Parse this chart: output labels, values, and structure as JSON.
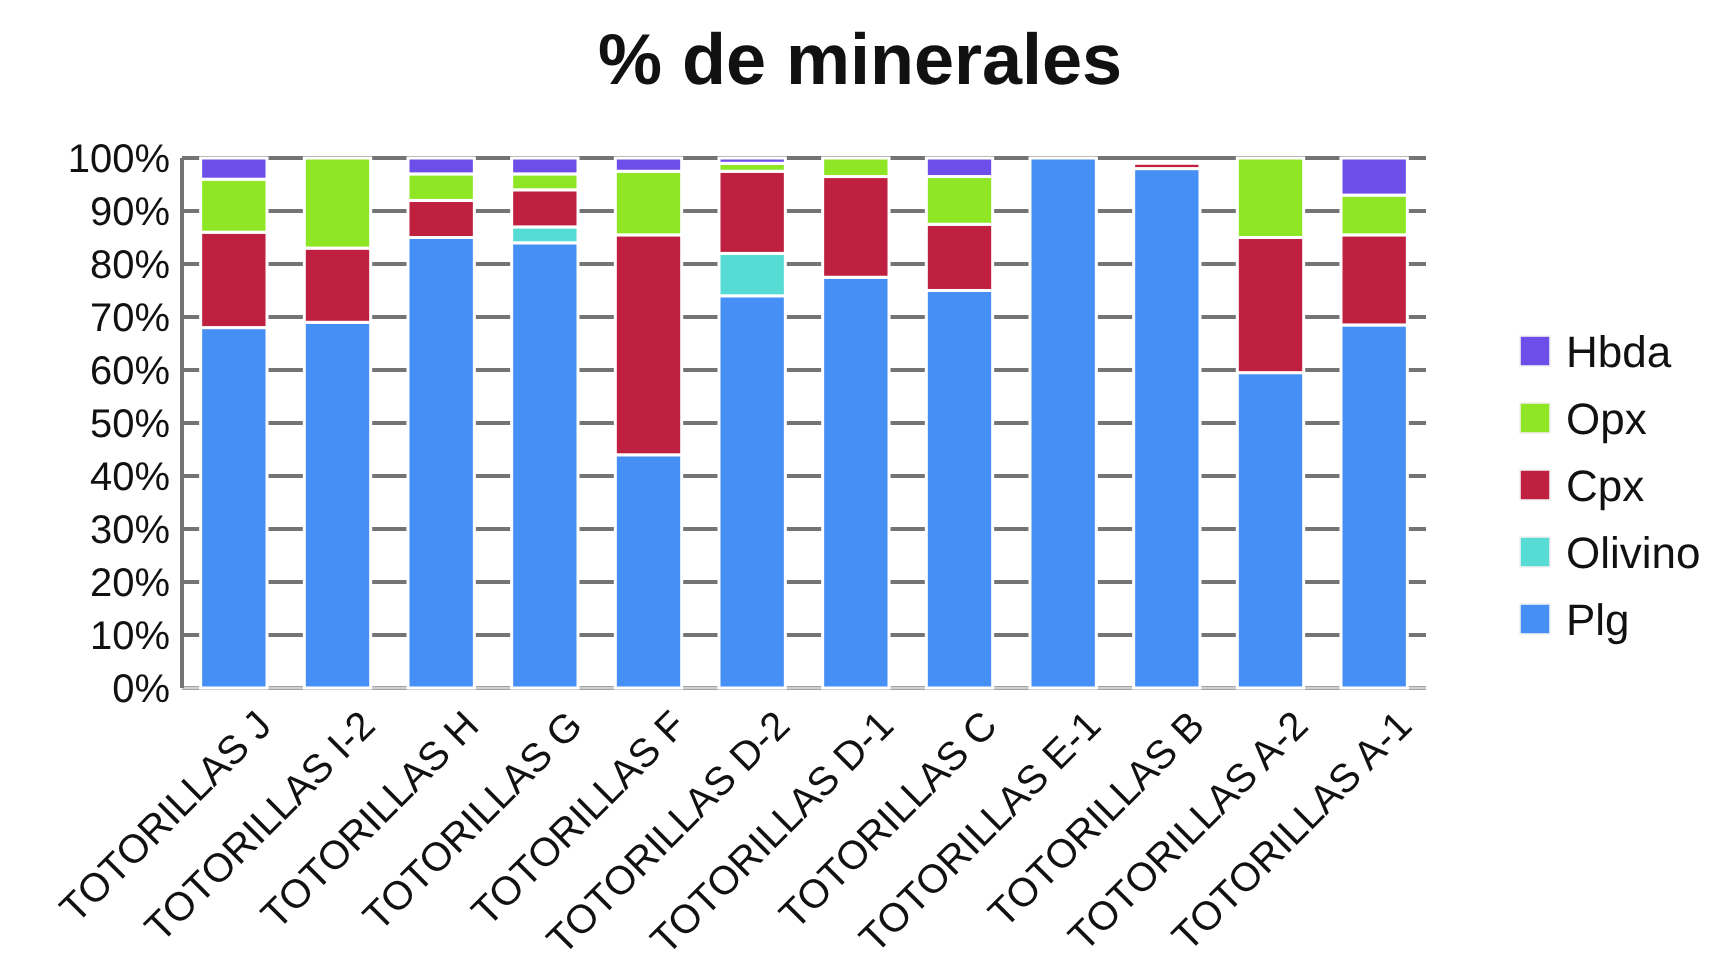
{
  "chart_data": {
    "type": "bar",
    "title": "% de minerales",
    "stacked": true,
    "categories": [
      "TOTORILLAS J",
      "TOTORILLAS I-2",
      "TOTORILLAS H",
      "TOTORILLAS G",
      "TOTORILLAS F",
      "TOTORILLAS D-2",
      "TOTORILLAS D-1",
      "TOTORILLAS C",
      "TOTORILLAS E-1",
      "TOTORILLAS B",
      "TOTORILLAS A-2",
      "TOTORILLAS A-1"
    ],
    "series": [
      {
        "name": "Plg",
        "color": "#468ff5",
        "values": [
          68,
          69,
          85,
          84,
          44,
          74,
          77.5,
          75,
          100,
          98,
          59.5,
          68.5
        ]
      },
      {
        "name": "Olivino",
        "color": "#56dbd5",
        "values": [
          null,
          null,
          null,
          3,
          null,
          8,
          null,
          null,
          null,
          null,
          null,
          null
        ]
      },
      {
        "name": "Cpx",
        "color": "#c02040",
        "values": [
          18,
          14,
          7,
          7,
          41.5,
          15.5,
          19,
          12.5,
          null,
          1,
          25.5,
          17
        ]
      },
      {
        "name": "Opx",
        "color": "#8fe625",
        "values": [
          10,
          17,
          5,
          3,
          12,
          1.5,
          3.5,
          9,
          null,
          null,
          15,
          7.5
        ]
      },
      {
        "name": "Hbda",
        "color": "#6e4ee8",
        "values": [
          4,
          null,
          3,
          3,
          2.5,
          1,
          null,
          3.5,
          null,
          null,
          null,
          7
        ]
      }
    ],
    "ylim": [
      0,
      100
    ],
    "yticks": [
      {
        "value": 0,
        "label": "0%"
      },
      {
        "value": 10,
        "label": "10%"
      },
      {
        "value": 20,
        "label": "20%"
      },
      {
        "value": 30,
        "label": "30%"
      },
      {
        "value": 40,
        "label": "40%"
      },
      {
        "value": 50,
        "label": "50%"
      },
      {
        "value": 60,
        "label": "60%"
      },
      {
        "value": 70,
        "label": "70%"
      },
      {
        "value": 80,
        "label": "80%"
      },
      {
        "value": 90,
        "label": "90%"
      },
      {
        "value": 100,
        "label": "100%"
      }
    ],
    "grid": "y",
    "legend": "right"
  }
}
